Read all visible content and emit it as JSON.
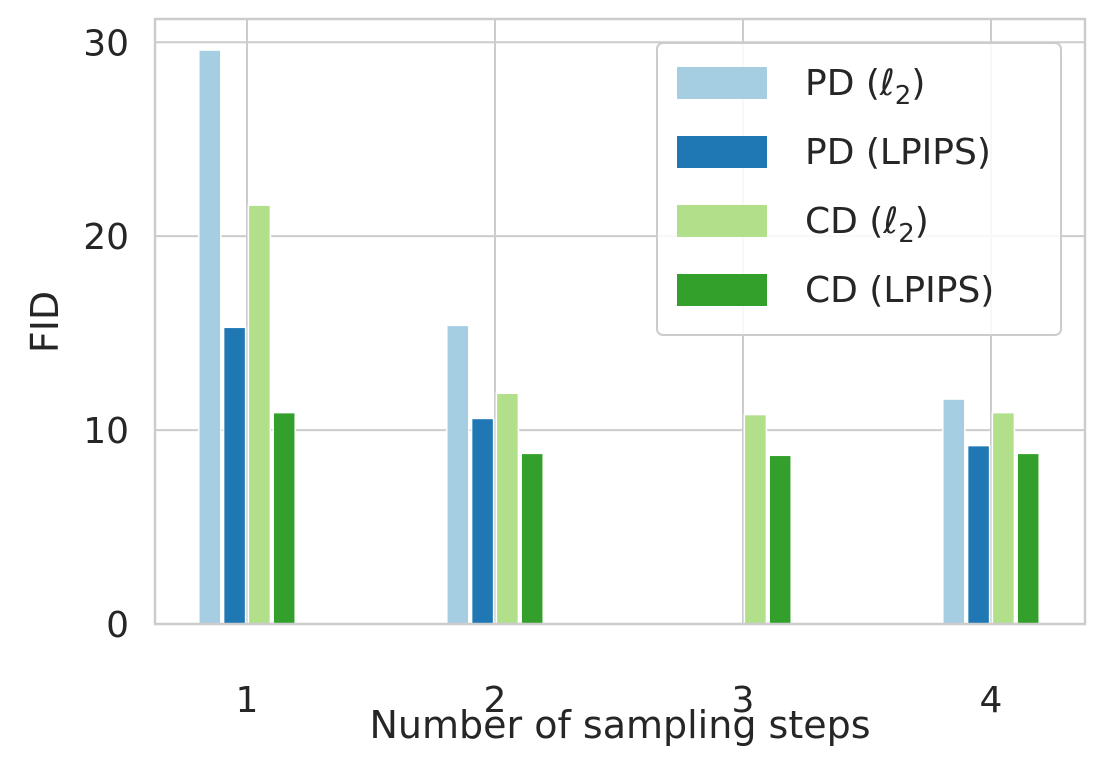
{
  "chart_data": {
    "type": "bar",
    "title": "",
    "xlabel": "Number of sampling steps",
    "ylabel": "FID",
    "categories": [
      "1",
      "2",
      "3",
      "4"
    ],
    "ylim": [
      0,
      31.2
    ],
    "yticks": [
      0,
      10,
      20,
      30
    ],
    "grid": true,
    "legend_position": "top-right",
    "series": [
      {
        "name": "PD (ℓ2)",
        "label_main": "PD (ℓ",
        "label_sub": "2",
        "label_end": ")",
        "color": "#a6cee3",
        "values": [
          29.6,
          15.4,
          null,
          11.6
        ]
      },
      {
        "name": "PD (LPIPS)",
        "label_main": "PD (LPIPS)",
        "label_sub": "",
        "label_end": "",
        "color": "#1f78b4",
        "values": [
          15.3,
          10.6,
          null,
          9.2
        ]
      },
      {
        "name": "CD (ℓ2)",
        "label_main": "CD (ℓ",
        "label_sub": "2",
        "label_end": ")",
        "color": "#b2df8a",
        "values": [
          21.6,
          11.9,
          10.8,
          10.9
        ]
      },
      {
        "name": "CD (LPIPS)",
        "label_main": "CD (LPIPS)",
        "label_sub": "",
        "label_end": "",
        "color": "#33a02c",
        "values": [
          10.9,
          8.8,
          8.7,
          8.8
        ]
      }
    ]
  }
}
